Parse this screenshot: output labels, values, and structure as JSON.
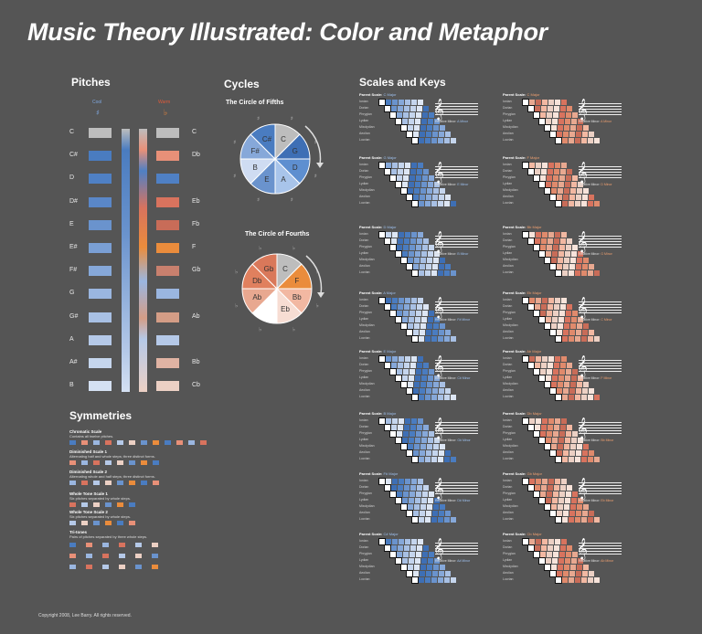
{
  "title": "Music Theory Illustrated: Color and Metaphor",
  "colors": {
    "background": "#555555",
    "cool": "#3e6fb5",
    "warm": "#e8843a"
  },
  "pitches": {
    "heading": "Pitches",
    "cool_label": "Cool",
    "warm_label": "Warm",
    "left": [
      {
        "name": "C",
        "color": "#bdbdbd"
      },
      {
        "name": "C#",
        "color": "#4a7cc0"
      },
      {
        "name": "D",
        "color": "#4f80c4"
      },
      {
        "name": "D#",
        "color": "#5a87c8"
      },
      {
        "name": "E",
        "color": "#6a93cd"
      },
      {
        "name": "E#",
        "color": "#7a9fd4"
      },
      {
        "name": "F#",
        "color": "#86a8d9"
      },
      {
        "name": "G",
        "color": "#9ab6e0"
      },
      {
        "name": "G#",
        "color": "#a8c0e4"
      },
      {
        "name": "A",
        "color": "#b5c9e8"
      },
      {
        "name": "A#",
        "color": "#c5d5ed"
      },
      {
        "name": "B",
        "color": "#d4e0f2"
      }
    ],
    "right": [
      {
        "name": "C",
        "color": "#bdbdbd"
      },
      {
        "name": "Db",
        "color": "#e89078"
      },
      {
        "name": "",
        "color": "#4f80c4"
      },
      {
        "name": "Eb",
        "color": "#d8735e"
      },
      {
        "name": "Fb",
        "color": "#c86c58"
      },
      {
        "name": "F",
        "color": "#ea8c3c"
      },
      {
        "name": "Gb",
        "color": "#c8806e"
      },
      {
        "name": "",
        "color": "#9ab6e0"
      },
      {
        "name": "Ab",
        "color": "#d49d86"
      },
      {
        "name": "",
        "color": "#b5c9e8"
      },
      {
        "name": "Bb",
        "color": "#e0b3a3"
      },
      {
        "name": "Cb",
        "color": "#ecd0c4"
      }
    ]
  },
  "cycles": {
    "heading": "Cycles",
    "fifths": {
      "title": "The Circle of Fifths",
      "slices": [
        {
          "label": "C",
          "color": "#bdbdbd"
        },
        {
          "label": "G",
          "color": "#3e6fb5"
        },
        {
          "label": "D",
          "color": "#5e8fd0"
        },
        {
          "label": "A",
          "color": "#a8c4ea"
        },
        {
          "label": "E",
          "color": "#6a93cd"
        },
        {
          "label": "B",
          "color": "#cfdcf2"
        },
        {
          "label": "F#",
          "color": "#86a8d9"
        },
        {
          "label": "C#",
          "color": "#4a7cc0"
        }
      ]
    },
    "fourths": {
      "title": "The Circle of Fourths",
      "slices": [
        {
          "label": "C",
          "color": "#bdbdbd"
        },
        {
          "label": "F",
          "color": "#ea8c3c"
        },
        {
          "label": "Bb",
          "color": "#f2b8a2"
        },
        {
          "label": "Eb",
          "color": "#f7ddd3"
        },
        {
          "label": "",
          "color": "#ffffff"
        },
        {
          "label": "Ab",
          "color": "#e8a890"
        },
        {
          "label": "Db",
          "color": "#e0805e"
        },
        {
          "label": "Gb",
          "color": "#d9785a"
        }
      ]
    }
  },
  "symmetries": {
    "heading": "Symmetries",
    "items": [
      {
        "name": "Chromatic Scale",
        "desc": "Contains all twelve pitches."
      },
      {
        "name": "Diminished Scale 1",
        "desc": "Alternating half and whole steps; three distinct forms."
      },
      {
        "name": "Diminished Scale 2",
        "desc": "Alternating whole and half steps; three distinct forms."
      },
      {
        "name": "Whole Tone Scale 1",
        "desc": "Six pitches separated by whole steps."
      },
      {
        "name": "Whole Tone Scale 2",
        "desc": "Six pitches separated by whole steps."
      },
      {
        "name": "Tri-tones",
        "desc": "Pairs of pitches separated by three whole steps."
      }
    ]
  },
  "scales": {
    "heading": "Scales and Keys",
    "parent_label": "Parent Scale:",
    "relative_label": "Relative Minor:",
    "mode_names": [
      "Ionian",
      "Dorian",
      "Phrygian",
      "Lydian",
      "Mixolydian",
      "Aeolian",
      "Locrian"
    ],
    "keys": [
      {
        "major": "C Major",
        "minor": "A Minor",
        "accent": "#4a7cc0"
      },
      {
        "major": "C Major",
        "minor": "A Minor",
        "accent": "#e8843a"
      },
      {
        "major": "G Major",
        "minor": "E Minor",
        "accent": "#4a7cc0"
      },
      {
        "major": "F Major",
        "minor": "D Minor",
        "accent": "#e8843a"
      },
      {
        "major": "D Major",
        "minor": "B Minor",
        "accent": "#4a7cc0"
      },
      {
        "major": "Bb Major",
        "minor": "G Minor",
        "accent": "#e8843a"
      },
      {
        "major": "A Major",
        "minor": "F# Minor",
        "accent": "#4a7cc0"
      },
      {
        "major": "Eb Major",
        "minor": "C Minor",
        "accent": "#e8843a"
      },
      {
        "major": "E Major",
        "minor": "C# Minor",
        "accent": "#4a7cc0"
      },
      {
        "major": "Ab Major",
        "minor": "F Minor",
        "accent": "#e8843a"
      },
      {
        "major": "B Major",
        "minor": "G# Minor",
        "accent": "#4a7cc0"
      },
      {
        "major": "Db Major",
        "minor": "Bb Minor",
        "accent": "#e8843a"
      },
      {
        "major": "F# Major",
        "minor": "D# Minor",
        "accent": "#4a7cc0"
      },
      {
        "major": "Gb Major",
        "minor": "Eb Minor",
        "accent": "#e8843a"
      },
      {
        "major": "C# Major",
        "minor": "A# Minor",
        "accent": "#4a7cc0"
      },
      {
        "major": "Cb Major",
        "minor": "Ab Minor",
        "accent": "#e8843a"
      }
    ]
  },
  "copyright": "Copyright 2008, Lee Barry. All rights reserved."
}
